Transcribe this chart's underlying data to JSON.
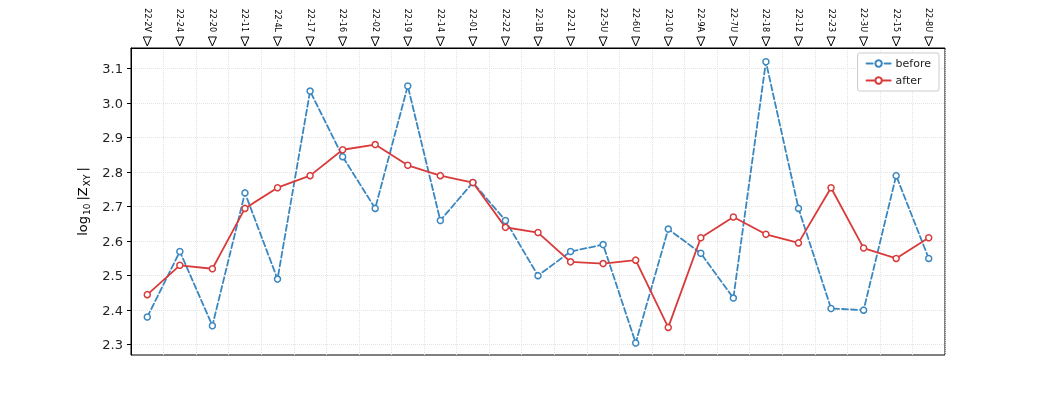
{
  "chart_data": {
    "type": "line",
    "categories": [
      "22-2V",
      "22-24",
      "22-20",
      "22-11",
      "22-4L",
      "22-17",
      "22-16",
      "22-02",
      "22-19",
      "22-14",
      "22-01",
      "22-22",
      "22-1B",
      "22-21",
      "22-5U",
      "22-6U",
      "22-10",
      "22-9A",
      "22-7U",
      "22-18",
      "22-12",
      "22-23",
      "22-3U",
      "22-15",
      "22-8U"
    ],
    "series": [
      {
        "name": "before",
        "color": "#3a87c0",
        "line_style": "dashed",
        "marker": "circle",
        "values": [
          2.38,
          2.57,
          2.355,
          2.74,
          2.49,
          3.035,
          2.845,
          2.695,
          3.05,
          2.66,
          2.77,
          2.66,
          2.5,
          2.57,
          2.59,
          2.305,
          2.635,
          2.565,
          2.435,
          3.12,
          2.695,
          2.405,
          2.4,
          2.79,
          2.55
        ]
      },
      {
        "name": "after",
        "color": "#d93a3a",
        "line_style": "solid",
        "marker": "circle",
        "values": [
          2.445,
          2.53,
          2.52,
          2.695,
          2.755,
          2.79,
          2.865,
          2.88,
          2.82,
          2.79,
          2.77,
          2.64,
          2.625,
          2.54,
          2.535,
          2.545,
          2.35,
          2.61,
          2.67,
          2.62,
          2.595,
          2.755,
          2.58,
          2.55,
          2.61
        ]
      }
    ],
    "ylabel": "log$_{10}$|Z$_{XY}$|",
    "ylim": [
      2.27,
      3.16
    ],
    "yticks": [
      2.3,
      2.4,
      2.5,
      2.6,
      2.7,
      2.8,
      2.9,
      {
        "value": 3,
        "label": "3.0"
      },
      3.1
    ],
    "grid": true,
    "legend": "top right"
  }
}
